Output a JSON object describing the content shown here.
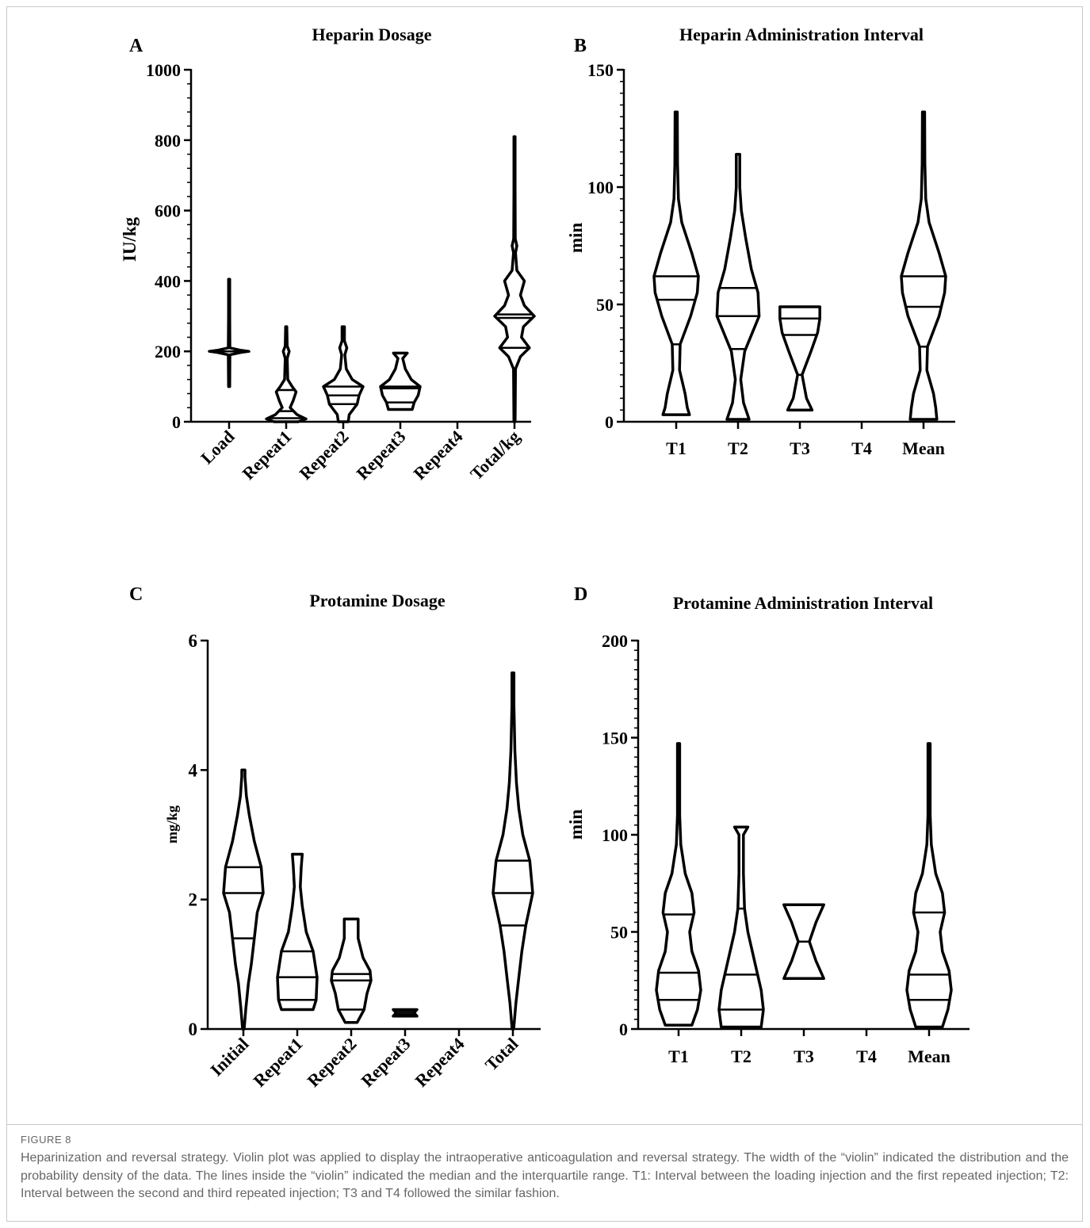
{
  "figure": {
    "label": "FIGURE 8",
    "caption": "Heparinization and reversal strategy. Violin plot was applied to display the intraoperative anticoagulation and reversal strategy. The width of the “violin” indicated the distribution and the probability density of the data. The lines inside the “violin” indicated the median and the interquartile range. T1: Interval between the loading injection and the first repeated injection; T2: Interval between the second and third repeated injection; T3 and T4 followed the similar fashion.",
    "line_color": "#000000"
  },
  "chart_data": [
    {
      "panel": "A",
      "type": "violin",
      "title": "Heparin Dosage",
      "xlabel": "",
      "ylabel": "IU/kg",
      "ylim": [
        0,
        1000
      ],
      "yticks": [
        0,
        200,
        400,
        600,
        800,
        1000
      ],
      "grid": false,
      "categories": [
        "Load",
        "Repeat1",
        "Repeat2",
        "Repeat3",
        "Repeat4",
        "Total/kg"
      ],
      "series": [
        {
          "category": "Load",
          "min": 100,
          "max": 405,
          "q1": 200,
          "median": 200,
          "q3": 200,
          "profile": [
            [
              100,
              0.03
            ],
            [
              190,
              0.04
            ],
            [
              197,
              0.6
            ],
            [
              200,
              1.0
            ],
            [
              203,
              0.6
            ],
            [
              210,
              0.04
            ],
            [
              300,
              0.03
            ],
            [
              405,
              0.03
            ]
          ]
        },
        {
          "category": "Repeat1",
          "min": 0,
          "max": 270,
          "q1": 10,
          "median": 30,
          "q3": 90,
          "profile": [
            [
              0,
              0.6
            ],
            [
              8,
              1.0
            ],
            [
              20,
              0.55
            ],
            [
              40,
              0.2
            ],
            [
              60,
              0.35
            ],
            [
              85,
              0.5
            ],
            [
              100,
              0.3
            ],
            [
              120,
              0.08
            ],
            [
              180,
              0.05
            ],
            [
              200,
              0.15
            ],
            [
              215,
              0.05
            ],
            [
              270,
              0.03
            ]
          ]
        },
        {
          "category": "Repeat2",
          "min": 0,
          "max": 270,
          "q1": 50,
          "median": 75,
          "q3": 100,
          "profile": [
            [
              0,
              0.25
            ],
            [
              20,
              0.3
            ],
            [
              50,
              0.7
            ],
            [
              75,
              0.8
            ],
            [
              100,
              1.0
            ],
            [
              120,
              0.45
            ],
            [
              150,
              0.15
            ],
            [
              190,
              0.08
            ],
            [
              210,
              0.18
            ],
            [
              230,
              0.06
            ],
            [
              270,
              0.06
            ]
          ]
        },
        {
          "category": "Repeat3",
          "min": 35,
          "max": 195,
          "q1": 55,
          "median": 95,
          "q3": 100,
          "profile": [
            [
              35,
              0.6
            ],
            [
              55,
              0.7
            ],
            [
              75,
              0.9
            ],
            [
              100,
              1.0
            ],
            [
              120,
              0.55
            ],
            [
              150,
              0.25
            ],
            [
              180,
              0.12
            ],
            [
              195,
              0.35
            ]
          ]
        },
        {
          "category": "Repeat4"
        },
        {
          "category": "Total/kg",
          "min": 0,
          "max": 810,
          "q1": 210,
          "median": 295,
          "q3": 305,
          "profile": [
            [
              0,
              0.03
            ],
            [
              150,
              0.05
            ],
            [
              185,
              0.3
            ],
            [
              210,
              0.75
            ],
            [
              240,
              0.35
            ],
            [
              270,
              0.45
            ],
            [
              300,
              1.0
            ],
            [
              330,
              0.5
            ],
            [
              360,
              0.3
            ],
            [
              400,
              0.5
            ],
            [
              430,
              0.12
            ],
            [
              480,
              0.05
            ],
            [
              500,
              0.12
            ],
            [
              520,
              0.04
            ],
            [
              650,
              0.03
            ],
            [
              810,
              0.03
            ]
          ]
        }
      ]
    },
    {
      "panel": "B",
      "type": "violin",
      "title": "Heparin Administration Interval",
      "xlabel": "",
      "ylabel": "min",
      "ylim": [
        0,
        150
      ],
      "yticks": [
        0,
        50,
        100,
        150
      ],
      "grid": false,
      "categories": [
        "T1",
        "T2",
        "T3",
        "T4",
        "Mean"
      ],
      "series": [
        {
          "category": "T1",
          "min": 3,
          "max": 132,
          "q1": 33,
          "median": 52,
          "q3": 62,
          "profile": [
            [
              3,
              0.6
            ],
            [
              6,
              0.5
            ],
            [
              12,
              0.4
            ],
            [
              22,
              0.15
            ],
            [
              33,
              0.18
            ],
            [
              45,
              0.65
            ],
            [
              55,
              0.95
            ],
            [
              62,
              1.0
            ],
            [
              72,
              0.7
            ],
            [
              85,
              0.25
            ],
            [
              95,
              0.1
            ],
            [
              110,
              0.06
            ],
            [
              132,
              0.05
            ]
          ]
        },
        {
          "category": "T2",
          "min": 1,
          "max": 114,
          "q1": 31,
          "median": 45,
          "q3": 57,
          "profile": [
            [
              1,
              0.5
            ],
            [
              8,
              0.25
            ],
            [
              18,
              0.12
            ],
            [
              30,
              0.3
            ],
            [
              45,
              0.95
            ],
            [
              55,
              0.9
            ],
            [
              65,
              0.6
            ],
            [
              78,
              0.35
            ],
            [
              90,
              0.15
            ],
            [
              100,
              0.08
            ],
            [
              114,
              0.08
            ]
          ]
        },
        {
          "category": "T3",
          "min": 5,
          "max": 49,
          "q1": 20,
          "median": 37,
          "q3": 44,
          "profile": [
            [
              5,
              0.55
            ],
            [
              10,
              0.3
            ],
            [
              20,
              0.1
            ],
            [
              30,
              0.5
            ],
            [
              38,
              0.8
            ],
            [
              44,
              0.9
            ],
            [
              49,
              0.9
            ]
          ]
        },
        {
          "category": "T4"
        },
        {
          "category": "Mean",
          "min": 1,
          "max": 132,
          "q1": 32,
          "median": 49,
          "q3": 62,
          "profile": [
            [
              1,
              0.6
            ],
            [
              6,
              0.55
            ],
            [
              12,
              0.45
            ],
            [
              22,
              0.15
            ],
            [
              32,
              0.18
            ],
            [
              45,
              0.7
            ],
            [
              55,
              0.95
            ],
            [
              62,
              1.0
            ],
            [
              72,
              0.7
            ],
            [
              85,
              0.25
            ],
            [
              95,
              0.1
            ],
            [
              110,
              0.06
            ],
            [
              132,
              0.05
            ]
          ]
        }
      ]
    },
    {
      "panel": "C",
      "type": "violin",
      "title": "Protamine Dosage",
      "xlabel": "",
      "ylabel": "mg/kg",
      "ylim": [
        0,
        6
      ],
      "yticks": [
        0,
        2,
        4,
        6
      ],
      "grid": false,
      "categories": [
        "Initial",
        "Repeat1",
        "Repeat2",
        "Repeat3",
        "Repeat4",
        "Total"
      ],
      "series": [
        {
          "category": "Initial",
          "min": 0,
          "max": 4.0,
          "q1": 1.4,
          "median": 2.1,
          "q3": 2.5,
          "profile": [
            [
              0,
              0.04
            ],
            [
              0.3,
              0.12
            ],
            [
              0.7,
              0.25
            ],
            [
              1.0,
              0.4
            ],
            [
              1.4,
              0.55
            ],
            [
              1.8,
              0.7
            ],
            [
              2.1,
              1.0
            ],
            [
              2.5,
              0.9
            ],
            [
              2.9,
              0.55
            ],
            [
              3.3,
              0.3
            ],
            [
              3.6,
              0.15
            ],
            [
              3.9,
              0.08
            ],
            [
              4.0,
              0.08
            ]
          ]
        },
        {
          "category": "Repeat1",
          "min": 0.3,
          "max": 2.7,
          "q1": 0.45,
          "median": 0.8,
          "q3": 1.2,
          "profile": [
            [
              0.3,
              0.8
            ],
            [
              0.45,
              0.95
            ],
            [
              0.8,
              1.0
            ],
            [
              1.2,
              0.8
            ],
            [
              1.5,
              0.45
            ],
            [
              1.9,
              0.25
            ],
            [
              2.2,
              0.15
            ],
            [
              2.5,
              0.2
            ],
            [
              2.7,
              0.25
            ]
          ]
        },
        {
          "category": "Repeat2",
          "min": 0.1,
          "max": 1.7,
          "q1": 0.3,
          "median": 0.75,
          "q3": 0.85,
          "profile": [
            [
              0.1,
              0.3
            ],
            [
              0.3,
              0.65
            ],
            [
              0.55,
              0.8
            ],
            [
              0.75,
              1.0
            ],
            [
              0.9,
              0.95
            ],
            [
              1.1,
              0.6
            ],
            [
              1.4,
              0.35
            ],
            [
              1.7,
              0.35
            ]
          ]
        },
        {
          "category": "Repeat3",
          "min": 0.2,
          "max": 0.3,
          "q1": 0.22,
          "median": 0.25,
          "q3": 0.28,
          "profile": [
            [
              0.2,
              0.6
            ],
            [
              0.25,
              0.45
            ],
            [
              0.3,
              0.6
            ]
          ]
        },
        {
          "category": "Repeat4"
        },
        {
          "category": "Total",
          "min": 0,
          "max": 5.5,
          "q1": 1.6,
          "median": 2.1,
          "q3": 2.6,
          "profile": [
            [
              0,
              0.04
            ],
            [
              0.4,
              0.15
            ],
            [
              0.8,
              0.3
            ],
            [
              1.2,
              0.45
            ],
            [
              1.6,
              0.65
            ],
            [
              2.1,
              1.0
            ],
            [
              2.6,
              0.85
            ],
            [
              3.0,
              0.5
            ],
            [
              3.4,
              0.3
            ],
            [
              3.8,
              0.18
            ],
            [
              4.3,
              0.1
            ],
            [
              5.0,
              0.05
            ],
            [
              5.5,
              0.05
            ]
          ]
        }
      ]
    },
    {
      "panel": "D",
      "type": "violin",
      "title": "Protamine Administration Interval",
      "xlabel": "",
      "ylabel": "min",
      "ylim": [
        0,
        200
      ],
      "yticks": [
        0,
        50,
        100,
        150,
        200
      ],
      "grid": false,
      "categories": [
        "T1",
        "T2",
        "T3",
        "T4",
        "Mean"
      ],
      "series": [
        {
          "category": "T1",
          "min": 2,
          "max": 147,
          "q1": 15,
          "median": 29,
          "q3": 59,
          "profile": [
            [
              2,
              0.6
            ],
            [
              10,
              0.85
            ],
            [
              20,
              1.0
            ],
            [
              30,
              0.9
            ],
            [
              40,
              0.6
            ],
            [
              50,
              0.5
            ],
            [
              60,
              0.7
            ],
            [
              70,
              0.6
            ],
            [
              80,
              0.3
            ],
            [
              95,
              0.1
            ],
            [
              110,
              0.05
            ],
            [
              147,
              0.05
            ]
          ]
        },
        {
          "category": "T2",
          "min": 1,
          "max": 104,
          "q1": 10,
          "median": 28,
          "q3": 62,
          "profile": [
            [
              1,
              0.9
            ],
            [
              10,
              1.0
            ],
            [
              20,
              0.9
            ],
            [
              35,
              0.6
            ],
            [
              50,
              0.3
            ],
            [
              62,
              0.15
            ],
            [
              80,
              0.1
            ],
            [
              100,
              0.1
            ],
            [
              104,
              0.3
            ]
          ]
        },
        {
          "category": "T3",
          "min": 26,
          "max": 64,
          "q1": 26,
          "median": 45,
          "q3": 64,
          "profile": [
            [
              26,
              0.9
            ],
            [
              35,
              0.55
            ],
            [
              45,
              0.25
            ],
            [
              55,
              0.55
            ],
            [
              64,
              0.9
            ]
          ]
        },
        {
          "category": "T4"
        },
        {
          "category": "Mean",
          "min": 1,
          "max": 147,
          "q1": 15,
          "median": 28,
          "q3": 60,
          "profile": [
            [
              1,
              0.6
            ],
            [
              10,
              0.85
            ],
            [
              20,
              1.0
            ],
            [
              30,
              0.9
            ],
            [
              40,
              0.6
            ],
            [
              50,
              0.5
            ],
            [
              60,
              0.7
            ],
            [
              70,
              0.6
            ],
            [
              80,
              0.3
            ],
            [
              95,
              0.1
            ],
            [
              110,
              0.05
            ],
            [
              147,
              0.05
            ]
          ]
        }
      ]
    }
  ]
}
